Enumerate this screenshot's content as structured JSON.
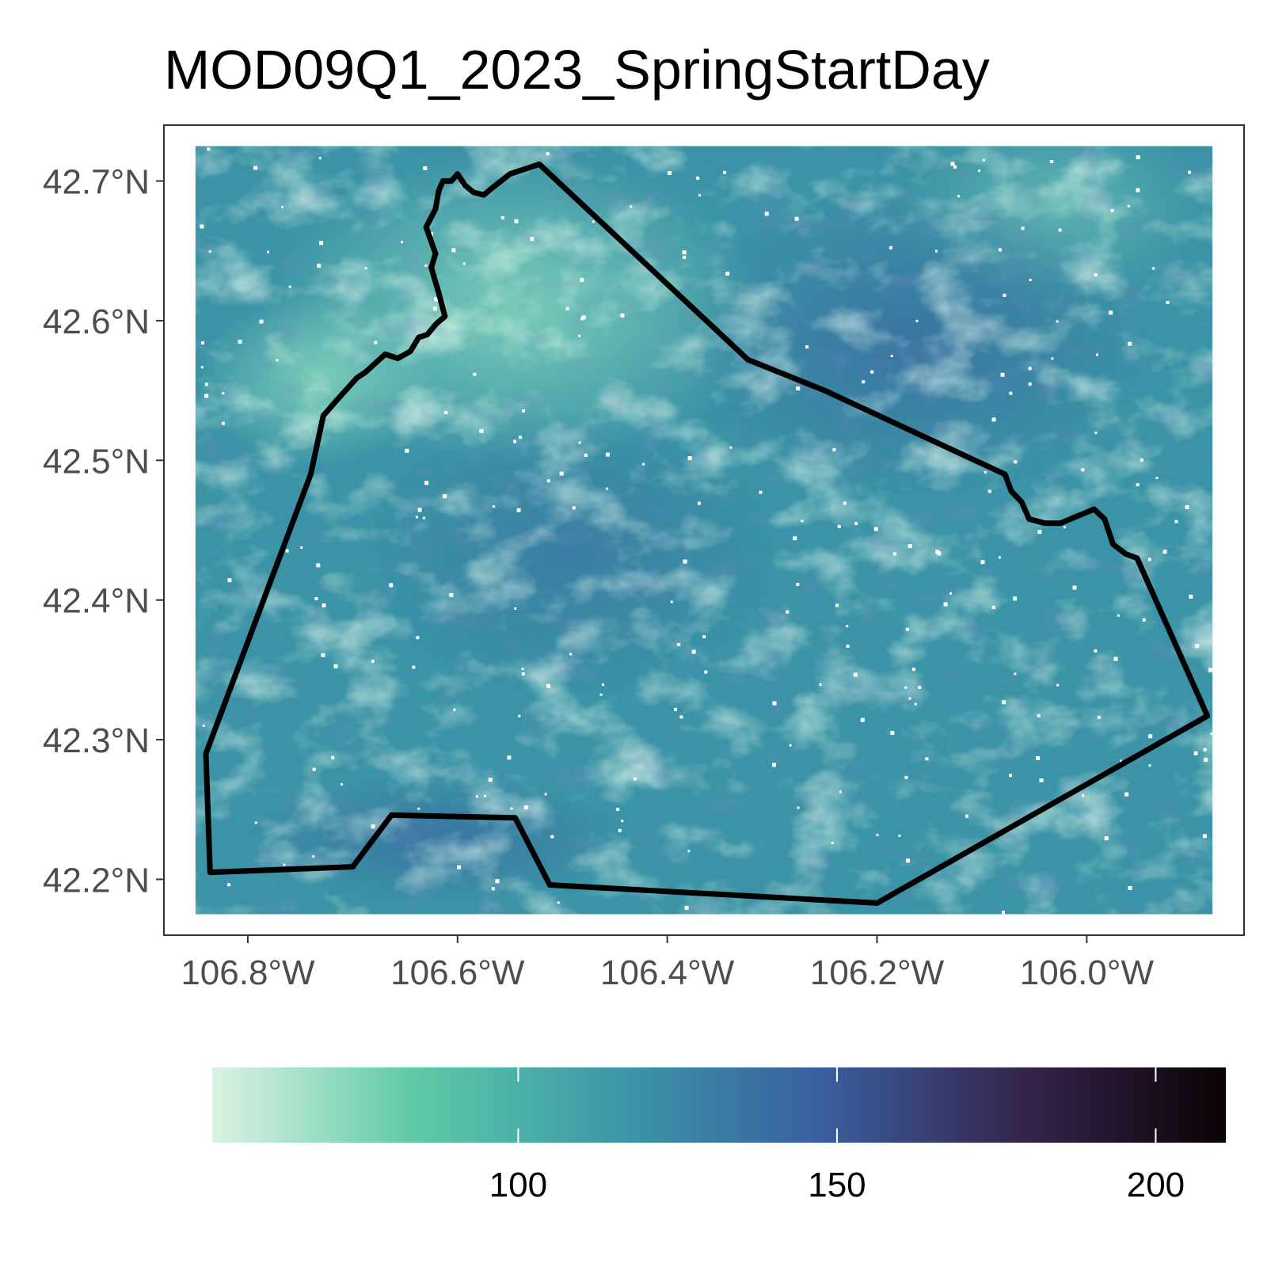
{
  "title": "MOD09Q1_2023_SpringStartDay",
  "map": {
    "lon_range": [
      -106.88,
      -105.85
    ],
    "lat_range": [
      42.16,
      42.74
    ],
    "raster_extent": {
      "lon": [
        -106.85,
        -105.88
      ],
      "lat": [
        42.175,
        42.725
      ]
    },
    "x_ticks": [
      {
        "value": -106.8,
        "label": "106.8°W"
      },
      {
        "value": -106.6,
        "label": "106.6°W"
      },
      {
        "value": -106.4,
        "label": "106.4°W"
      },
      {
        "value": -106.2,
        "label": "106.2°W"
      },
      {
        "value": -106.0,
        "label": "106.0°W"
      }
    ],
    "y_ticks": [
      {
        "value": 42.7,
        "label": "42.7°N"
      },
      {
        "value": 42.6,
        "label": "42.6°N"
      },
      {
        "value": 42.5,
        "label": "42.5°N"
      },
      {
        "value": 42.4,
        "label": "42.4°N"
      },
      {
        "value": 42.3,
        "label": "42.3°N"
      },
      {
        "value": 42.2,
        "label": "42.2°N"
      }
    ],
    "boundary": [
      [
        -106.522,
        42.712
      ],
      [
        -106.55,
        42.705
      ],
      [
        -106.567,
        42.695
      ],
      [
        -106.575,
        42.69
      ],
      [
        -106.585,
        42.692
      ],
      [
        -106.593,
        42.697
      ],
      [
        -106.6,
        42.705
      ],
      [
        -106.606,
        42.7
      ],
      [
        -106.614,
        42.7
      ],
      [
        -106.618,
        42.693
      ],
      [
        -106.621,
        42.68
      ],
      [
        -106.63,
        42.667
      ],
      [
        -106.621,
        42.648
      ],
      [
        -106.625,
        42.638
      ],
      [
        -106.622,
        42.63
      ],
      [
        -106.618,
        42.62
      ],
      [
        -106.612,
        42.603
      ],
      [
        -106.62,
        42.598
      ],
      [
        -106.629,
        42.59
      ],
      [
        -106.637,
        42.588
      ],
      [
        -106.645,
        42.578
      ],
      [
        -106.657,
        42.573
      ],
      [
        -106.669,
        42.576
      ],
      [
        -106.688,
        42.563
      ],
      [
        -106.696,
        42.559
      ],
      [
        -106.714,
        42.544
      ],
      [
        -106.728,
        42.532
      ],
      [
        -106.74,
        42.49
      ],
      [
        -106.78,
        42.41
      ],
      [
        -106.84,
        42.29
      ],
      [
        -106.836,
        42.205
      ],
      [
        -106.7,
        42.209
      ],
      [
        -106.663,
        42.246
      ],
      [
        -106.545,
        42.244
      ],
      [
        -106.512,
        42.196
      ],
      [
        -106.2,
        42.183
      ],
      [
        -105.885,
        42.317
      ],
      [
        -105.952,
        42.43
      ],
      [
        -105.963,
        42.433
      ],
      [
        -105.975,
        42.44
      ],
      [
        -105.983,
        42.458
      ],
      [
        -105.993,
        42.465
      ],
      [
        -106.025,
        42.455
      ],
      [
        -106.04,
        42.455
      ],
      [
        -106.055,
        42.458
      ],
      [
        -106.062,
        42.47
      ],
      [
        -106.072,
        42.478
      ],
      [
        -106.078,
        42.49
      ],
      [
        -106.25,
        42.55
      ],
      [
        -106.323,
        42.572
      ],
      [
        -106.522,
        42.712
      ]
    ]
  },
  "legend": {
    "range": [
      52,
      211
    ],
    "ticks": [
      {
        "value": 100,
        "label": "100"
      },
      {
        "value": 150,
        "label": "150"
      },
      {
        "value": 200,
        "label": "200"
      }
    ],
    "colors": [
      "#dcf3e3",
      "#5ec9a7",
      "#3c98a8",
      "#3a5f9f",
      "#35244c",
      "#0b0205"
    ]
  }
}
